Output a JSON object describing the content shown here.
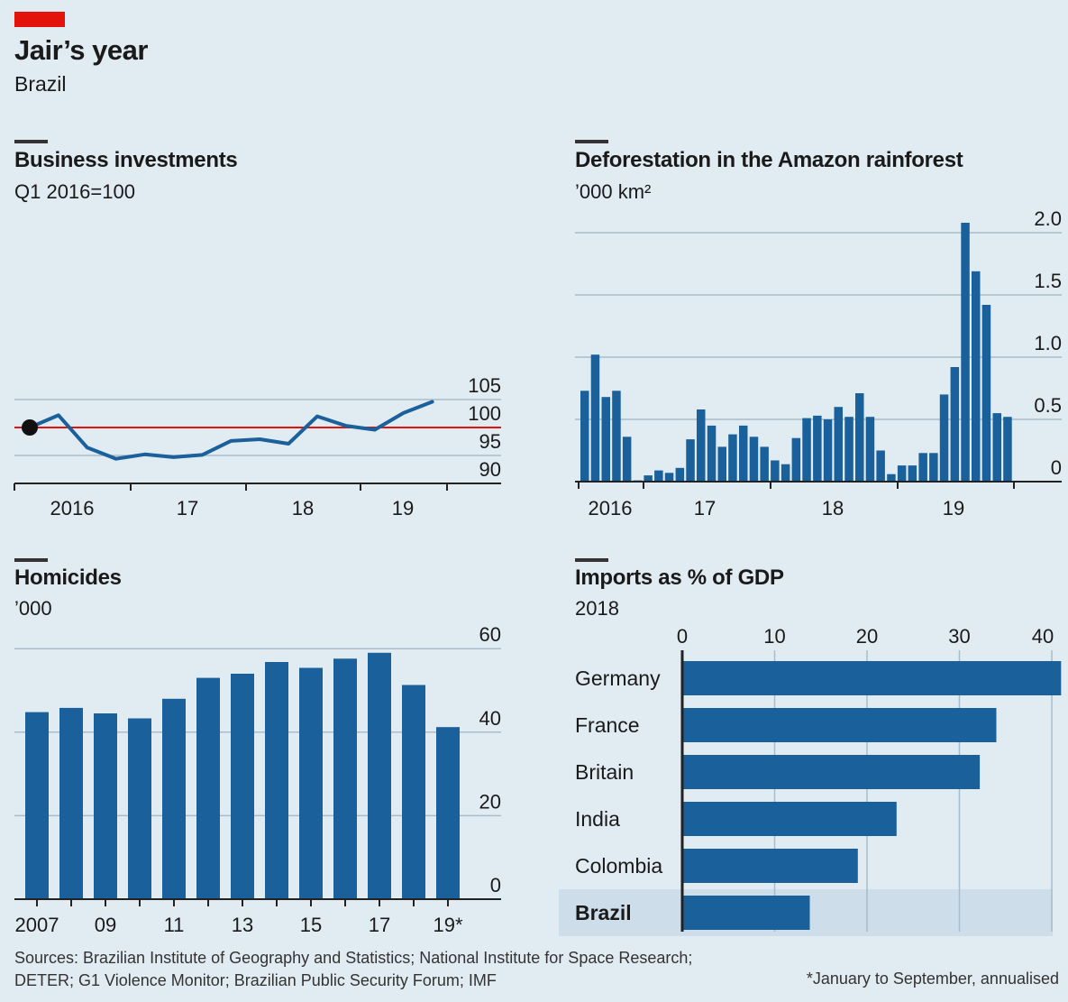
{
  "header": {
    "title": "Jair’s year",
    "subtitle": "Brazil"
  },
  "colors": {
    "bar": "#1a609b",
    "line": "#1a609b",
    "baseline_100": "#e3120b",
    "grid": "#a9bccb",
    "background": "#e1ebf2",
    "highlight_row": "#cddde9",
    "accent_tag": "#e3120b"
  },
  "chart_data": [
    {
      "id": "business",
      "type": "line",
      "title": "Business investments",
      "subtitle": "Q1 2016=100",
      "ylim": [
        90,
        105
      ],
      "yticks": [
        "90",
        "95",
        "100",
        "105"
      ],
      "xtick_labels": [
        "2016",
        "17",
        "18",
        "19"
      ],
      "reference_line": 100,
      "series": [
        {
          "x": [
            "2016Q1",
            "2016Q2",
            "2016Q3",
            "2016Q4",
            "2017Q1",
            "2017Q2",
            "2017Q3",
            "2017Q4",
            "2018Q1",
            "2018Q2",
            "2018Q3",
            "2018Q4",
            "2019Q1",
            "2019Q2",
            "2019Q3"
          ],
          "values": [
            100.0,
            102.2,
            96.4,
            94.4,
            95.2,
            94.7,
            95.1,
            97.6,
            97.9,
            97.1,
            102.0,
            100.3,
            99.6,
            102.6,
            104.6
          ]
        }
      ]
    },
    {
      "id": "deforestation",
      "type": "bar",
      "title": "Deforestation in the Amazon rainforest",
      "subtitle": "’000 km²",
      "ylim": [
        0,
        2.0
      ],
      "yticks": [
        "0",
        "0.5",
        "1.0",
        "1.5",
        "2.0"
      ],
      "xtick_labels": [
        "2016",
        "17",
        "18",
        "19"
      ],
      "values": [
        0.73,
        1.02,
        0.68,
        0.73,
        0.36,
        0.01,
        0.05,
        0.09,
        0.07,
        0.11,
        0.34,
        0.58,
        0.45,
        0.28,
        0.38,
        0.45,
        0.36,
        0.28,
        0.17,
        0.14,
        0.35,
        0.51,
        0.53,
        0.5,
        0.6,
        0.52,
        0.71,
        0.52,
        0.25,
        0.06,
        0.13,
        0.13,
        0.23,
        0.23,
        0.7,
        0.92,
        2.08,
        1.69,
        1.42,
        0.55,
        0.52
      ]
    },
    {
      "id": "homicides",
      "type": "bar",
      "title": "Homicides",
      "subtitle": "’000",
      "ylim": [
        0,
        60
      ],
      "yticks": [
        "0",
        "20",
        "40",
        "60"
      ],
      "categories": [
        "2007",
        "2008",
        "2009",
        "2010",
        "2011",
        "2012",
        "2013",
        "2014",
        "2015",
        "2016",
        "2017",
        "2018",
        "2019*"
      ],
      "xtick_labels": [
        "2007",
        "09",
        "11",
        "13",
        "15",
        "17",
        "19*"
      ],
      "values": [
        44.8,
        45.8,
        44.5,
        43.3,
        48.0,
        53.0,
        54.0,
        56.8,
        55.4,
        57.6,
        59.0,
        51.3,
        41.2
      ]
    },
    {
      "id": "imports",
      "type": "bar",
      "orientation": "horizontal",
      "title": "Imports as % of GDP",
      "subtitle": "2018",
      "xlim": [
        0,
        40
      ],
      "xticks": [
        "0",
        "10",
        "20",
        "30",
        "40"
      ],
      "categories": [
        "Germany",
        "France",
        "Britain",
        "India",
        "Colombia",
        "Brazil"
      ],
      "values": [
        41.0,
        34.0,
        32.2,
        23.2,
        19.0,
        13.8
      ],
      "highlight": "Brazil"
    }
  ],
  "footer": {
    "sources_line1": "Sources: Brazilian Institute of Geography and Statistics; National Institute for Space Research;",
    "sources_line2": "DETER; G1 Violence Monitor; Brazilian Public Security Forum; IMF",
    "footnote": "*January to September, annualised"
  }
}
